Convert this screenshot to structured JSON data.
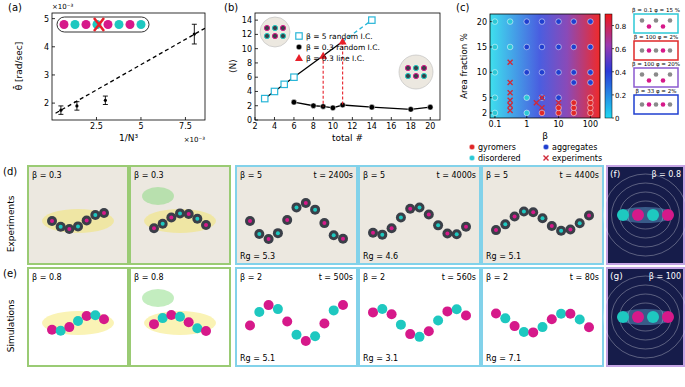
{
  "chart_data": [
    {
      "type": "scatter",
      "title": "(a)",
      "x_label": "1/N³",
      "y_label": "θ̄̇ [rad/sec]",
      "annotations": [
        "×10⁻³",
        "×10⁻³"
      ],
      "xlim": [
        0,
        8.6
      ],
      "ylim": [
        1.4,
        5.2
      ],
      "xticks": [
        2.5,
        5,
        7.5
      ],
      "yticks": [
        2,
        3,
        4,
        5
      ],
      "series": [
        {
          "type": "scatter",
          "color": "#000000",
          "marker": "circle",
          "line_style": "none",
          "x": [
            0.5,
            1.4,
            3.0,
            8.0
          ],
          "values": [
            1.75,
            1.9,
            2.1,
            4.45
          ],
          "errors": [
            0.15,
            0.15,
            0.15,
            0.35
          ]
        },
        {
          "type": "line",
          "color": "#000000",
          "marker": "none",
          "line_style": "dashed",
          "x": [
            0.2,
            8.6
          ],
          "values": [
            1.64,
            4.66
          ]
        }
      ]
    },
    {
      "type": "line",
      "title": "(b)",
      "x_label": "total #",
      "y_label": "⟨N⟩",
      "legend": "top-left",
      "xlim": [
        2,
        21
      ],
      "ylim": [
        0,
        15
      ],
      "xticks": [
        2,
        4,
        6,
        8,
        10,
        12,
        14,
        16,
        18,
        20
      ],
      "yticks": [
        0,
        2,
        4,
        6,
        8,
        10,
        12,
        14
      ],
      "series": [
        {
          "color": "#000000",
          "marker": "none",
          "line_style": "solid",
          "x": [
            3,
            11
          ],
          "values": [
            3,
            11
          ]
        },
        {
          "color": "#29b6d8",
          "marker": "none",
          "line_style": "dashed",
          "x": [
            11,
            14
          ],
          "values": [
            11,
            14
          ]
        },
        {
          "name": "β = 5 random I.C.",
          "color": "#29b6d8",
          "marker": "square",
          "line_style": "none",
          "x": [
            3,
            4,
            5,
            6,
            14
          ],
          "values": [
            3,
            4,
            5,
            6,
            14
          ]
        },
        {
          "name": "β = 0.3 random I.C.",
          "color": "#000000",
          "marker": "circle",
          "line_style": "solid",
          "x": [
            6,
            8,
            9,
            10,
            11,
            14,
            18,
            20
          ],
          "values": [
            2.5,
            2.0,
            1.9,
            1.7,
            2.1,
            1.8,
            1.5,
            1.8
          ]
        },
        {
          "name": "β = 0.3 line I.C.",
          "color": "#e8202a",
          "marker": "triangle",
          "line_style": "none",
          "x": [
            9,
            11
          ],
          "values": [
            9,
            11
          ]
        }
      ]
    },
    {
      "type": "scatter",
      "title": "(c)",
      "x_label": "β",
      "y_label": "Area fraction %",
      "log": "x",
      "legend": "bottom",
      "xlim": [
        0.07,
        200
      ],
      "ylim": [
        1,
        21.5
      ],
      "xticks": [
        0.1,
        1,
        10,
        100
      ],
      "yticks": [
        2,
        5,
        10,
        15,
        20
      ],
      "colorbar": {
        "range": [
          0,
          0.9
        ],
        "ticks": [
          0,
          0.2,
          0.4,
          0.6,
          0.8
        ]
      },
      "series": [
        {
          "name": "gyromers",
          "color": "#e02828",
          "marker": "circle",
          "x": [
            3,
            10,
            30,
            100,
            10,
            30,
            100,
            30,
            100,
            100
          ],
          "values": [
            2,
            2,
            2,
            2,
            3,
            3,
            3,
            4,
            4,
            5
          ]
        },
        {
          "name": "aggregates",
          "color": "#1f3fd0",
          "marker": "circle",
          "x": [
            1,
            3,
            10,
            30,
            100,
            1,
            3,
            10,
            30,
            100,
            1,
            3,
            10,
            30,
            100,
            3,
            10,
            30,
            100
          ],
          "values": [
            20,
            20,
            20,
            20,
            20,
            15,
            15,
            15,
            15,
            15,
            10,
            10,
            10,
            10,
            10,
            5,
            5,
            8,
            8
          ]
        },
        {
          "name": "disordered",
          "color": "#2cc9d6",
          "marker": "circle",
          "x": [
            0.1,
            0.1,
            0.1,
            0.1,
            0.1,
            0.3,
            0.3,
            1,
            1
          ],
          "values": [
            2,
            5,
            10,
            15,
            20,
            15,
            20,
            2,
            5
          ]
        },
        {
          "name": "experiments",
          "color": "#d02a3a",
          "marker": "x",
          "x": [
            0.3,
            0.3,
            0.3,
            0.3,
            0.3,
            0.3,
            3,
            3,
            2,
            10
          ],
          "values": [
            2.5,
            3.5,
            4.5,
            6,
            8,
            12,
            3,
            5,
            4,
            4
          ]
        }
      ],
      "insets": [
        {
          "label": "β = 0.1  φ = 15 %",
          "color": "#2cc9d6"
        },
        {
          "label": "β = 100  φ = 2%",
          "color": "#e02828"
        },
        {
          "label": "β = 100  φ = 20%",
          "color": "#8a5ad0"
        },
        {
          "label": "β = 33  φ = 2%",
          "color": "#1f3fd0"
        }
      ]
    }
  ],
  "image_panels": [
    {
      "row_label": "Experiments",
      "panel_label": "(d)",
      "left": [
        "β = 0.3",
        "β = 0.3"
      ],
      "right": [
        [
          "β = 5",
          "t = 2400s",
          "Rg = 5.3"
        ],
        [
          "β = 5",
          "t = 4000s",
          "Rg = 4.6"
        ],
        [
          "β = 5",
          "t = 4400s",
          "Rg = 5.1"
        ]
      ],
      "side_label": "(f)",
      "side_beta": "β = 0.8"
    },
    {
      "row_label": "Simulations",
      "panel_label": "(e)",
      "left": [
        "β = 0.8",
        "β = 0.8"
      ],
      "right": [
        [
          "β = 2",
          "t = 500s",
          "Rg = 5.1"
        ],
        [
          "β = 2",
          "t = 560s",
          "Rg = 3.1"
        ],
        [
          "β = 2",
          "t = 80s",
          "Rg = 7.1"
        ]
      ],
      "side_label": "(g)",
      "side_beta": "β = 100"
    }
  ]
}
